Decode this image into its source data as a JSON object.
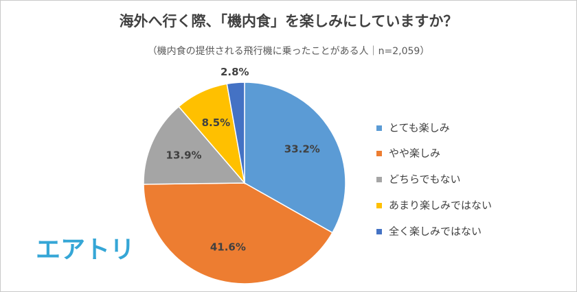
{
  "chart_data": {
    "type": "pie",
    "title": "海外へ行く際、「機内食」を楽しみにしていますか？",
    "subtitle": "（機内食の提供される飛行機に乗ったことがある人｜n=2,059）",
    "brand": "エアトリ",
    "categories": [
      "とても楽しみ",
      "やや楽しみ",
      "どちらでもない",
      "あまり楽しみではない",
      "全く楽しみではない"
    ],
    "values": [
      33.2,
      41.6,
      13.9,
      8.5,
      2.8
    ],
    "value_labels": [
      "33.2%",
      "41.6%",
      "13.9%",
      "8.5%",
      "2.8%"
    ],
    "colors": [
      "#5b9bd5",
      "#ed7d31",
      "#a5a5a5",
      "#ffc000",
      "#4472c4"
    ],
    "legend": "right"
  }
}
